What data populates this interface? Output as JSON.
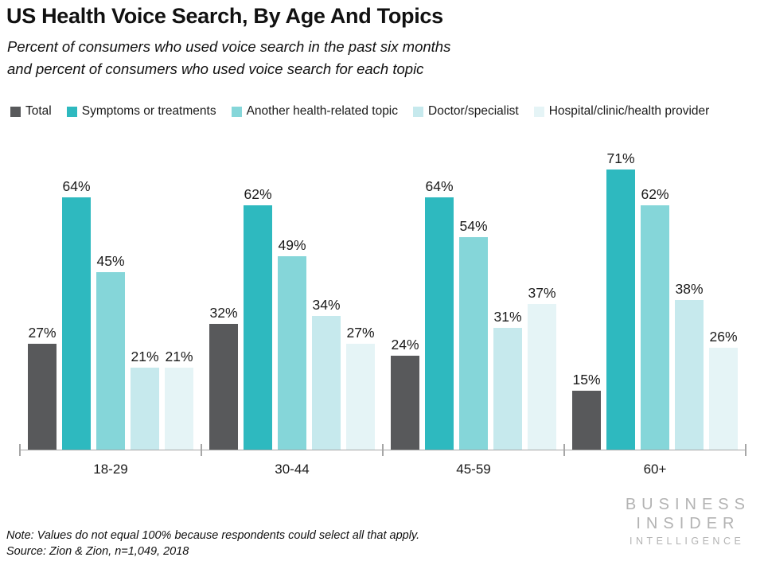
{
  "title": "US Health Voice Search, By Age And Topics",
  "subtitle_line1": "Percent of consumers who used voice search in the past six months",
  "subtitle_line2": "and percent of consumers who used voice search for each topic",
  "chart_data": {
    "type": "bar",
    "categories": [
      "18-29",
      "30-44",
      "45-59",
      "60+"
    ],
    "series": [
      {
        "name": "Total",
        "color": "#58595b",
        "values": [
          27,
          32,
          24,
          15
        ]
      },
      {
        "name": "Symptoms or treatments",
        "color": "#2eb9bf",
        "values": [
          64,
          62,
          64,
          71
        ]
      },
      {
        "name": "Another health-related topic",
        "color": "#85d6d9",
        "values": [
          45,
          49,
          54,
          62
        ]
      },
      {
        "name": "Doctor/specialist",
        "color": "#c6e9ed",
        "values": [
          21,
          34,
          31,
          38
        ]
      },
      {
        "name": "Hospital/clinic/health provider",
        "color": "#e5f4f6",
        "values": [
          21,
          27,
          37,
          26
        ]
      }
    ],
    "value_suffix": "%",
    "ylim": [
      0,
      75
    ],
    "grid": false,
    "legend_position": "top",
    "axis_color": "#a6a6a6"
  },
  "note": "Note: Values do not equal 100% because respondents could select all that apply.",
  "source": "Source: Zion & Zion, n=1,049, 2018",
  "logo": {
    "line1": "BUSINESS",
    "line2": "INSIDER",
    "line3": "INTELLIGENCE"
  },
  "colors": {
    "logo": "#b3b3b3",
    "text": "#1a1a1a",
    "axis": "#a6a6a6"
  }
}
